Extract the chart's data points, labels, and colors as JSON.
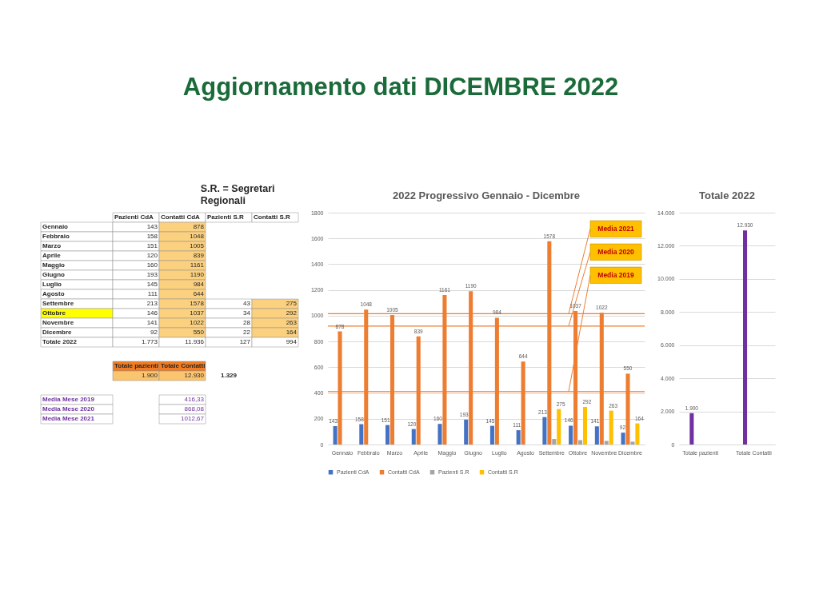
{
  "chart_data": [
    {
      "type": "other",
      "title": "Aggiornamento dati DICEMBRE 2022",
      "color": "#1b6b3a"
    },
    {
      "type": "other",
      "annotations": [
        "S.R. = Segretari Regionali"
      ],
      "categories": [
        "Pazienti CdA",
        "Contatti CdA",
        "Pazienti S.R",
        "Contatti S.R"
      ],
      "y_categories": [
        "Gennaio",
        "Febbraio",
        "Marzo",
        "Aprile",
        "Maggio",
        "Giugno",
        "Luglio",
        "Agosto",
        "Settembre",
        "Ottobre",
        "Novembre",
        "Dicembre",
        "Totale 2022"
      ],
      "cell_labels": [
        [
          "143",
          "878",
          null,
          null
        ],
        [
          "158",
          "1048",
          null,
          null
        ],
        [
          "151",
          "1005",
          null,
          null
        ],
        [
          "120",
          "839",
          null,
          null
        ],
        [
          "160",
          "1161",
          null,
          null
        ],
        [
          "193",
          "1190",
          null,
          null
        ],
        [
          "145",
          "984",
          null,
          null
        ],
        [
          "111",
          "644",
          null,
          null
        ],
        [
          "213",
          "1578",
          "43",
          "275"
        ],
        [
          "146",
          "1037",
          "34",
          "292"
        ],
        [
          "141",
          "1022",
          "28",
          "263"
        ],
        [
          "92",
          "550",
          "22",
          "164"
        ],
        [
          "1.773",
          "11.936",
          "127",
          "994"
        ]
      ],
      "colors": [
        [
          null,
          null,
          null,
          null,
          null
        ],
        [
          null,
          null,
          "#fbd17f",
          null,
          null
        ],
        [
          null,
          null,
          "#fbd17f",
          null,
          null
        ],
        [
          null,
          null,
          "#fbd17f",
          null,
          null
        ],
        [
          null,
          null,
          "#fbd17f",
          null,
          null
        ],
        [
          null,
          null,
          "#fbd17f",
          null,
          null
        ],
        [
          null,
          null,
          "#fbd17f",
          null,
          null
        ],
        [
          null,
          null,
          "#fbd17f",
          null,
          null
        ],
        [
          null,
          null,
          "#fbd17f",
          null,
          null
        ],
        [
          null,
          null,
          "#fbd17f",
          null,
          "#fbd17f"
        ],
        [
          "#ffff00",
          null,
          "#fbd17f",
          null,
          "#fbd17f"
        ],
        [
          null,
          null,
          "#fbd17f",
          null,
          "#fbd17f"
        ],
        [
          null,
          null,
          "#fbd17f",
          null,
          "#fbd17f"
        ],
        [
          null,
          null,
          null,
          null,
          null
        ]
      ],
      "color": "#262626"
    },
    {
      "type": "other",
      "annotations": [
        "1.329"
      ],
      "categories": [
        "Totale pazienti",
        "Totale Contatti"
      ],
      "cell_labels": [
        [
          "1.900",
          "12.930"
        ]
      ],
      "colors": [
        [
          "#f47c20",
          "#f47c20"
        ],
        [
          "#fbc46e",
          "#fbc46e"
        ]
      ],
      "color": "#262626"
    },
    {
      "type": "other",
      "y_categories": [
        "Media Mese 2019",
        "Media Mese 2020",
        "Media Mese 2021"
      ],
      "cell_labels": [
        [
          "416,33"
        ],
        [
          "868,08"
        ],
        [
          "1012,67"
        ]
      ],
      "color": "#7030a0"
    },
    {
      "type": "bar",
      "title": "2022 Progressivo Gennaio - Dicembre",
      "categories": [
        "Gennaio",
        "Febbraio",
        "Marzo",
        "Aprile",
        "Maggio",
        "Giugno",
        "Luglio",
        "Agosto",
        "Settembre",
        "Ottobre",
        "Novembre",
        "Dicembre"
      ],
      "series": [
        {
          "name": "Pazienti CdA",
          "color": "#4472c4",
          "values": [
            143,
            158,
            151,
            120,
            160,
            193,
            145,
            111,
            213,
            146,
            141,
            92
          ],
          "value_labels": [
            "143",
            "158",
            "151",
            "120",
            "160",
            "193",
            "145",
            "111",
            "213",
            "146",
            "141",
            "92"
          ]
        },
        {
          "name": "Contatti CdA",
          "color": "#ed7d31",
          "values": [
            878,
            1048,
            1005,
            839,
            1161,
            1190,
            984,
            644,
            1578,
            1037,
            1022,
            550
          ],
          "value_labels": [
            "878",
            "1048",
            "1005",
            "839",
            "1161",
            "1190",
            "984",
            "644",
            "1578",
            "1037",
            "1022",
            "550"
          ]
        },
        {
          "name": "Pazienti S.R",
          "color": "#a5a5a5",
          "values": [
            null,
            null,
            null,
            null,
            null,
            null,
            null,
            null,
            43,
            34,
            28,
            22
          ]
        },
        {
          "name": "Contatti S.R",
          "color": "#ffc000",
          "values": [
            null,
            null,
            null,
            null,
            null,
            null,
            null,
            null,
            275,
            292,
            263,
            164
          ],
          "value_labels": [
            null,
            null,
            null,
            null,
            null,
            null,
            null,
            null,
            "275",
            "292",
            "263",
            "164"
          ]
        }
      ],
      "ylim": [
        0,
        1800
      ],
      "yticks": [
        0,
        200,
        400,
        600,
        800,
        1000,
        1200,
        1400,
        1600,
        1800
      ],
      "grid": "y",
      "legend": "bottom",
      "ref_lines": [
        {
          "axis": "y",
          "value": 1015,
          "label": "Media 2021",
          "color": "#ed7d31"
        },
        {
          "axis": "y",
          "value": 920,
          "label": "Media 2020",
          "color": "#ed7d31"
        },
        {
          "axis": "y",
          "value": 410,
          "label": "Media 2019",
          "color": "#ed7d31"
        }
      ]
    },
    {
      "type": "bar",
      "title": "Totale 2022",
      "categories": [
        "Totale pazienti",
        "Totale Contatti"
      ],
      "values": [
        1900,
        12930
      ],
      "color": "#7030a0",
      "value_labels": [
        "1.900",
        "12.930"
      ],
      "ylim": [
        0,
        14000
      ],
      "yticks": [
        0,
        {
          "value": 2000,
          "label": "2.000"
        },
        {
          "value": 4000,
          "label": "4.000"
        },
        {
          "value": 6000,
          "label": "6.000"
        },
        {
          "value": 8000,
          "label": "8.000"
        },
        {
          "value": 10000,
          "label": "10.000"
        },
        {
          "value": 12000,
          "label": "12.000"
        },
        {
          "value": 14000,
          "label": "14.000"
        }
      ],
      "grid": "y"
    }
  ]
}
